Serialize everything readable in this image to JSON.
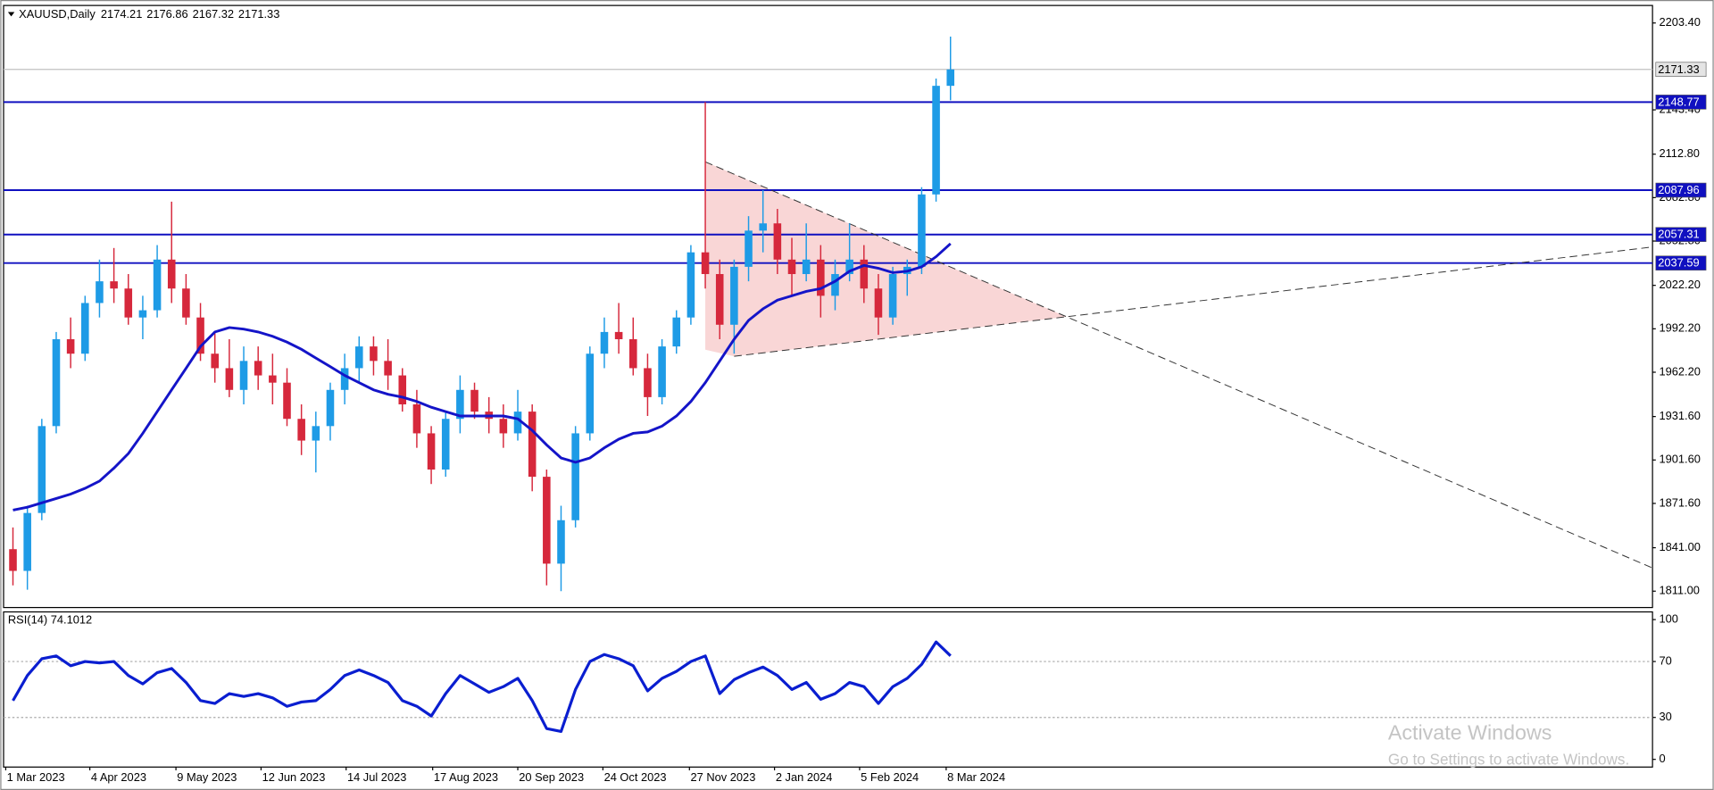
{
  "chart_data": [
    {
      "type": "candlestick",
      "title": "XAUUSD,Daily",
      "header_values": [
        2174.21,
        2176.86,
        2167.32,
        2171.33
      ],
      "up_color": "#1e9be6",
      "down_color": "#d6283c",
      "open": [
        1840,
        1825,
        1865,
        1925,
        1985,
        1975,
        2010,
        2025,
        2020,
        2000,
        2005,
        2040,
        2020,
        2000,
        1975,
        1965,
        1950,
        1970,
        1960,
        1955,
        1930,
        1915,
        1925,
        1950,
        1965,
        1980,
        1970,
        1960,
        1940,
        1920,
        1895,
        1930,
        1950,
        1935,
        1930,
        1920,
        1935,
        1890,
        1830,
        1860,
        1920,
        1975,
        1990,
        1985,
        1965,
        1945,
        1980,
        2000,
        2045,
        2030,
        1995,
        2035,
        2060,
        2065,
        2040,
        2030,
        2040,
        2015,
        2030,
        2040,
        2020,
        2000,
        2030,
        2035,
        2085,
        2160
      ],
      "high": [
        1855,
        1870,
        1930,
        1990,
        2000,
        2015,
        2040,
        2048,
        2030,
        2015,
        2050,
        2080,
        2030,
        2010,
        1990,
        1985,
        1980,
        1980,
        1975,
        1965,
        1940,
        1935,
        1955,
        1975,
        1987,
        1987,
        1985,
        1965,
        1950,
        1925,
        1935,
        1960,
        1955,
        1945,
        1940,
        1950,
        1940,
        1895,
        1870,
        1925,
        1980,
        2000,
        2010,
        2000,
        1975,
        1985,
        2005,
        2050,
        2148.77,
        2040,
        2040,
        2070,
        2088,
        2075,
        2055,
        2065,
        2050,
        2040,
        2065,
        2050,
        2030,
        2035,
        2040,
        2090,
        2165,
        2194
      ],
      "low": [
        1815,
        1812,
        1860,
        1920,
        1965,
        1970,
        2000,
        2010,
        1995,
        1985,
        2000,
        2010,
        1995,
        1970,
        1955,
        1945,
        1940,
        1950,
        1940,
        1925,
        1905,
        1893,
        1915,
        1940,
        1955,
        1960,
        1950,
        1935,
        1910,
        1885,
        1890,
        1920,
        1930,
        1920,
        1910,
        1915,
        1880,
        1815,
        1811,
        1855,
        1915,
        1965,
        1975,
        1960,
        1932,
        1940,
        1975,
        1995,
        2020,
        1985,
        1975,
        2025,
        2045,
        2030,
        2015,
        2025,
        2000,
        2005,
        2025,
        2010,
        1988,
        1995,
        2015,
        2030,
        2080,
        2150
      ],
      "close": [
        1825,
        1865,
        1925,
        1985,
        1975,
        2010,
        2025,
        2020,
        2000,
        2005,
        2040,
        2020,
        2000,
        1975,
        1965,
        1950,
        1970,
        1960,
        1955,
        1930,
        1915,
        1925,
        1950,
        1965,
        1980,
        1970,
        1960,
        1940,
        1920,
        1895,
        1930,
        1950,
        1935,
        1930,
        1920,
        1935,
        1890,
        1830,
        1860,
        1920,
        1975,
        1990,
        1985,
        1965,
        1945,
        1980,
        2000,
        2045,
        2030,
        1995,
        2035,
        2060,
        2065,
        2040,
        2030,
        2040,
        2015,
        2030,
        2040,
        2020,
        2000,
        2030,
        2035,
        2085,
        2160,
        2171.33
      ],
      "overlays": [
        {
          "color": "#1414c8",
          "values": [
            1867,
            1869,
            1872,
            1875,
            1878,
            1882,
            1887,
            1896,
            1906,
            1920,
            1935,
            1950,
            1965,
            1980,
            1990,
            1993,
            1992,
            1990,
            1987,
            1983,
            1978,
            1972,
            1966,
            1960,
            1955,
            1950,
            1947,
            1945,
            1942,
            1938,
            1935,
            1932,
            1932,
            1932,
            1932,
            1930,
            1922,
            1912,
            1903,
            1900,
            1903,
            1910,
            1916,
            1920,
            1921,
            1925,
            1932,
            1942,
            1955,
            1970,
            1985,
            1998,
            2006,
            2012,
            2015,
            2018,
            2020,
            2025,
            2032,
            2036,
            2034,
            2031,
            2032,
            2035,
            2042,
            2051
          ]
        }
      ],
      "levels": [
        {
          "value": 2148.77,
          "color": "#1010c0"
        },
        {
          "value": 2087.96,
          "color": "#1010c0"
        },
        {
          "value": 2057.31,
          "color": "#1010c0"
        },
        {
          "value": 2037.59,
          "color": "#1010c0"
        }
      ],
      "price_line": {
        "value": 2171.33,
        "color": "#c0c0c0"
      },
      "trendlines": [
        {
          "points": [
            [
              48,
              2107.5
            ],
            [
              113.67,
              1827
            ]
          ]
        },
        {
          "points": [
            [
              50,
              1973.2
            ],
            [
              113.67,
              2048.7
            ]
          ]
        }
      ],
      "fill_color": "#f9d6d6",
      "xlim": [
        -0.65,
        113.67
      ],
      "ylim": [
        1799.7,
        2215.5
      ],
      "yticks": [
        {
          "value": 2203.4,
          "label": "2203.40"
        },
        {
          "value": 2143.4,
          "label": "2143.40"
        },
        {
          "value": 2112.8,
          "label": "2112.80"
        },
        {
          "value": 2082.8,
          "label": "2082.80"
        },
        {
          "value": 2052.8,
          "label": "2052.80"
        },
        {
          "value": 2022.2,
          "label": "2022.20"
        },
        {
          "value": 1992.2,
          "label": "1992.20"
        },
        {
          "value": 1962.2,
          "label": "1962.20"
        },
        {
          "value": 1931.6,
          "label": "1931.60"
        },
        {
          "value": 1901.6,
          "label": "1901.60"
        },
        {
          "value": 1871.6,
          "label": "1871.60"
        },
        {
          "value": 1841,
          "label": "1841.00"
        },
        {
          "value": 1811,
          "label": "1811.00"
        }
      ]
    },
    {
      "type": "line",
      "title": "RSI(14) 74.1012",
      "series": [
        {
          "color": "#0a1ed0",
          "values": [
            42,
            60,
            72,
            74,
            67,
            70,
            69,
            70,
            60,
            54,
            62,
            65,
            55,
            42,
            40,
            47,
            45,
            47,
            44,
            38,
            41,
            42,
            50,
            60,
            64,
            60,
            55,
            42,
            38,
            31,
            47,
            60,
            54,
            48,
            52,
            58,
            42,
            22,
            20,
            50,
            70,
            75,
            72,
            67,
            49,
            58,
            63,
            70,
            74,
            47,
            57,
            62,
            66,
            60,
            50,
            55,
            43,
            47,
            55,
            52,
            40,
            52,
            58,
            68,
            84,
            74.1012
          ]
        }
      ],
      "levels": [
        70,
        30
      ],
      "xlim": [
        -0.65,
        113.67
      ],
      "ylim": [
        -5.5,
        105.5
      ],
      "yticks": [
        100,
        70,
        30,
        0
      ],
      "xticks": [
        {
          "value": -0.5,
          "label": "1 Mar 2023"
        },
        {
          "value": 5.33,
          "label": "4 Apr 2023"
        },
        {
          "value": 11.3,
          "label": "9 May 2023"
        },
        {
          "value": 17.2,
          "label": "12 Jun 2023"
        },
        {
          "value": 23.1,
          "label": "14 Jul 2023"
        },
        {
          "value": 29.1,
          "label": "17 Aug 2023"
        },
        {
          "value": 35,
          "label": "20 Sep 2023"
        },
        {
          "value": 40.9,
          "label": "24 Oct 2023"
        },
        {
          "value": 46.9,
          "label": "27 Nov 2023"
        },
        {
          "value": 52.8,
          "label": "2 Jan 2024"
        },
        {
          "value": 58.7,
          "label": "5 Feb 2024"
        },
        {
          "value": 64.7,
          "label": "8 Mar 2024"
        }
      ]
    }
  ],
  "watermark": {
    "title": "Activate Windows",
    "subtitle": "Go to Settings to activate Windows."
  }
}
